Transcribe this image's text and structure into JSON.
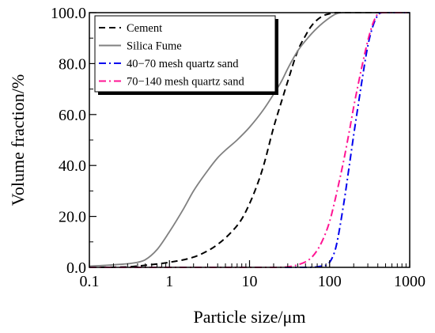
{
  "chart_data": {
    "type": "line",
    "title": "",
    "xlabel": "Particle size/μm",
    "ylabel": "Volume fraction/%",
    "xscale": "log",
    "xlim": [
      0.1,
      1000
    ],
    "ylim": [
      0,
      100
    ],
    "x_ticks": [
      0.1,
      1,
      10,
      100,
      1000
    ],
    "x_tick_labels": [
      "0.1",
      "1",
      "10",
      "100",
      "1000"
    ],
    "y_ticks": [
      0,
      20,
      40,
      60,
      80,
      100
    ],
    "y_tick_labels": [
      "0.0",
      "20.0",
      "40.0",
      "60.0",
      "80.0",
      "100.0"
    ],
    "grid": false,
    "legend_position": "top-left",
    "series": [
      {
        "name": "Cement",
        "color": "#000000",
        "dash": "dashed",
        "points": [
          [
            0.1,
            0
          ],
          [
            0.3,
            0.2
          ],
          [
            0.5,
            0.8
          ],
          [
            1,
            2
          ],
          [
            2,
            4
          ],
          [
            3,
            6.5
          ],
          [
            4,
            9
          ],
          [
            6,
            14
          ],
          [
            8,
            19
          ],
          [
            10,
            25
          ],
          [
            12,
            31
          ],
          [
            15,
            40
          ],
          [
            20,
            55
          ],
          [
            25,
            65
          ],
          [
            30,
            73
          ],
          [
            40,
            85
          ],
          [
            50,
            91
          ],
          [
            60,
            95
          ],
          [
            80,
            98.5
          ],
          [
            100,
            99.6
          ],
          [
            120,
            100
          ],
          [
            1000,
            100
          ]
        ]
      },
      {
        "name": "Silica Fume",
        "color": "#808080",
        "dash": "solid",
        "points": [
          [
            0.1,
            0.5
          ],
          [
            0.2,
            1
          ],
          [
            0.4,
            2
          ],
          [
            0.5,
            3
          ],
          [
            0.7,
            7
          ],
          [
            1,
            14
          ],
          [
            1.5,
            23
          ],
          [
            2,
            30
          ],
          [
            3,
            38
          ],
          [
            4,
            43
          ],
          [
            5,
            46
          ],
          [
            7,
            50
          ],
          [
            10,
            55
          ],
          [
            15,
            62
          ],
          [
            20,
            68
          ],
          [
            25,
            73
          ],
          [
            30,
            78
          ],
          [
            40,
            85
          ],
          [
            50,
            89
          ],
          [
            70,
            94
          ],
          [
            100,
            98
          ],
          [
            120,
            99.5
          ],
          [
            150,
            100
          ],
          [
            1000,
            100
          ]
        ]
      },
      {
        "name": "40−70 mesh quartz sand",
        "color": "#0000ee",
        "dash": "dashdot",
        "points": [
          [
            0.1,
            0
          ],
          [
            50,
            0
          ],
          [
            80,
            0.5
          ],
          [
            100,
            2
          ],
          [
            120,
            8
          ],
          [
            150,
            25
          ],
          [
            180,
            42
          ],
          [
            200,
            52
          ],
          [
            250,
            72
          ],
          [
            300,
            87
          ],
          [
            350,
            95
          ],
          [
            400,
            99
          ],
          [
            450,
            100
          ],
          [
            1000,
            100
          ]
        ]
      },
      {
        "name": "70−140 mesh quartz sand",
        "color": "#ff1493",
        "dash": "dashdot",
        "points": [
          [
            0.1,
            0
          ],
          [
            20,
            0
          ],
          [
            40,
            1
          ],
          [
            60,
            4
          ],
          [
            80,
            10
          ],
          [
            100,
            18
          ],
          [
            120,
            28
          ],
          [
            150,
            42
          ],
          [
            180,
            55
          ],
          [
            200,
            63
          ],
          [
            250,
            78
          ],
          [
            300,
            89
          ],
          [
            350,
            96
          ],
          [
            400,
            99.5
          ],
          [
            450,
            100
          ],
          [
            1000,
            100
          ]
        ]
      }
    ]
  }
}
